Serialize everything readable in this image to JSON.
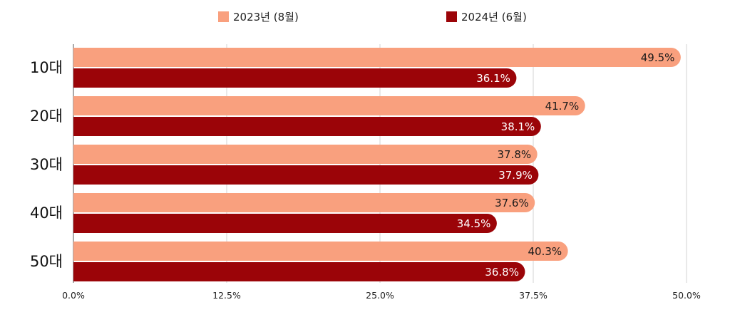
{
  "chart_data": {
    "type": "bar",
    "orientation": "horizontal",
    "categories": [
      "10대",
      "20대",
      "30대",
      "40대",
      "50대"
    ],
    "series": [
      {
        "name": "2023년 (8월)",
        "values": [
          49.5,
          41.7,
          37.8,
          37.6,
          40.3
        ],
        "color": "#f9a07e"
      },
      {
        "name": "2024년 (6월)",
        "values": [
          36.1,
          38.1,
          37.9,
          34.5,
          36.8
        ],
        "color": "#9b0408"
      }
    ],
    "value_labels": [
      [
        "49.5%",
        "41.7%",
        "37.8%",
        "37.6%",
        "40.3%"
      ],
      [
        "36.1%",
        "38.1%",
        "37.9%",
        "34.5%",
        "36.8%"
      ]
    ],
    "xlim": [
      0,
      50
    ],
    "xticks": [
      0,
      12.5,
      25,
      37.5,
      50
    ],
    "xtick_labels": [
      "0.0%",
      "12.5%",
      "25.0%",
      "37.5%",
      "50.0%"
    ],
    "grid": "vertical",
    "legend_position": "top-center",
    "title": "",
    "xlabel": "",
    "ylabel": ""
  }
}
